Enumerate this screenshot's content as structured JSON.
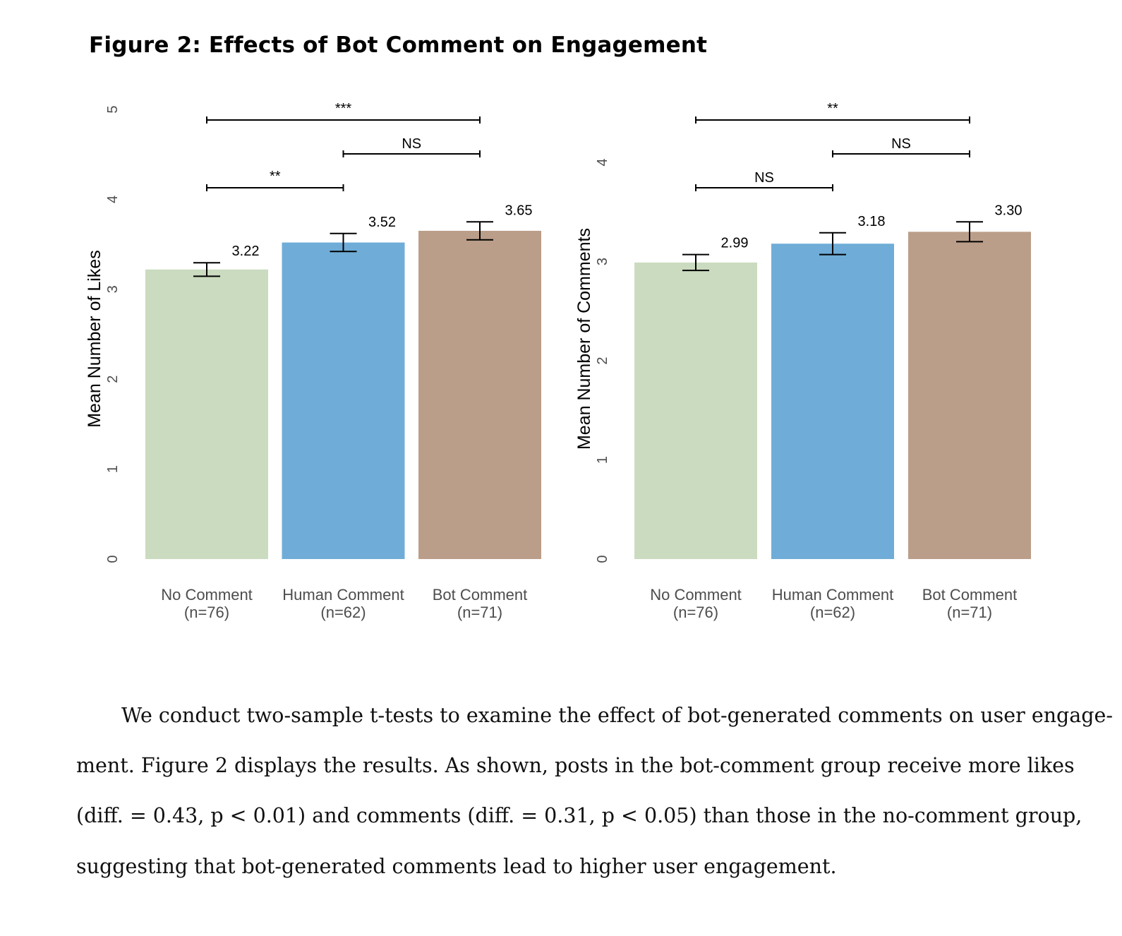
{
  "figure": {
    "title": "Figure 2:  Effects of Bot Comment on Engagement"
  },
  "chart_data": [
    {
      "type": "bar",
      "title": "",
      "xlabel": "",
      "ylabel": "Mean Number of Likes",
      "ylim": [
        0,
        5
      ],
      "yticks": [
        "0",
        "1",
        "2",
        "3",
        "4",
        "5"
      ],
      "grid": false,
      "categories": [
        {
          "line1": "No Comment",
          "line2": "(n=76)"
        },
        {
          "line1": "Human Comment",
          "line2": "(n=62)"
        },
        {
          "line1": "Bot Comment",
          "line2": "(n=71)"
        }
      ],
      "values": [
        3.22,
        3.52,
        3.65
      ],
      "value_labels": [
        "3.22",
        "3.52",
        "3.65"
      ],
      "error_half_width": [
        0.075,
        0.1,
        0.1
      ],
      "colors": [
        "#cadbbf",
        "#6fadd8",
        "#bb9e89"
      ],
      "comparisons": [
        {
          "from": 0,
          "to": 2,
          "label": "***",
          "level": 5.0
        },
        {
          "from": 1,
          "to": 2,
          "label": "NS",
          "level": 4.62
        },
        {
          "from": 0,
          "to": 1,
          "label": "**",
          "level": 4.25
        }
      ]
    },
    {
      "type": "bar",
      "title": "",
      "xlabel": "",
      "ylabel": "Mean Number of Comments",
      "ylim": [
        0,
        4
      ],
      "yticks": [
        "0",
        "1",
        "2",
        "3",
        "4"
      ],
      "grid": false,
      "categories": [
        {
          "line1": "No Comment",
          "line2": "(n=76)"
        },
        {
          "line1": "Human Comment",
          "line2": "(n=62)"
        },
        {
          "line1": "Bot Comment",
          "line2": "(n=71)"
        }
      ],
      "values": [
        2.99,
        3.18,
        3.3
      ],
      "value_labels": [
        "2.99",
        "3.18",
        "3.30"
      ],
      "error_half_width": [
        0.08,
        0.11,
        0.1
      ],
      "colors": [
        "#cadbbf",
        "#6fadd8",
        "#bb9e89"
      ],
      "comparisons": [
        {
          "from": 0,
          "to": 2,
          "label": "**",
          "level": 4.42
        },
        {
          "from": 1,
          "to": 2,
          "label": "NS",
          "level": 4.08
        },
        {
          "from": 0,
          "to": 1,
          "label": "NS",
          "level": 3.74
        }
      ]
    }
  ],
  "paragraph": {
    "lines": [
      "We conduct two-sample t-tests to examine the effect of bot-generated comments on user engage-",
      "ment. Figure 2 displays the results. As shown, posts in the bot-comment group receive more likes",
      "(diff. = 0.43, p < 0.01) and comments (diff. = 0.31, p < 0.05) than those in the no-comment group,",
      "suggesting that bot-generated comments lead to higher user engagement."
    ]
  }
}
